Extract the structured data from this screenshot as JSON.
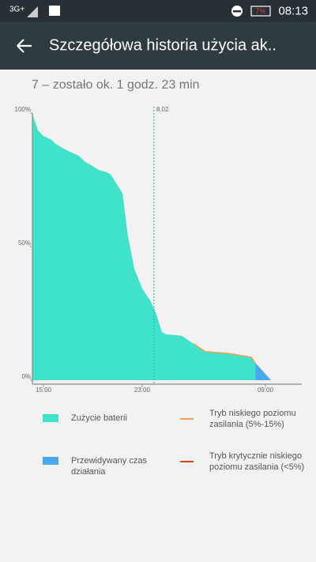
{
  "status_bar": {
    "network": "3G+",
    "battery": "7%",
    "time": "08:13"
  },
  "app_bar": {
    "title": "Szczegółowa historia użycia ak.."
  },
  "subtitle": "7 – zostało ok. 1 godz. 23 min",
  "chart_data": {
    "type": "area",
    "xlim": [
      14.1,
      35.95
    ],
    "xticks": [
      {
        "value": 15,
        "label": "15:00"
      },
      {
        "value": 23,
        "label": "23:00"
      },
      {
        "value": 33,
        "label": "09:00"
      }
    ],
    "ylim": [
      0,
      100
    ],
    "yticks": [
      {
        "value": 0,
        "label": "0%"
      },
      {
        "value": 50,
        "label": "50%"
      },
      {
        "value": 100,
        "label": "100%"
      }
    ],
    "marker": {
      "x": 23.96,
      "label": "8.02",
      "color": "#2aa8b8"
    },
    "series": [
      {
        "name": "Zużycie baterii",
        "color": "#3fe3c9",
        "style": "area",
        "x": [
          14.1,
          14.23,
          14.55,
          15.0,
          15.64,
          15.96,
          16.92,
          17.88,
          18.39,
          19.04,
          19.48,
          20.13,
          20.45,
          21.41,
          21.86,
          22.37,
          23.01,
          23.65,
          24.1,
          24.61,
          24.93,
          26.22,
          27.18,
          28.14,
          30.06,
          31.86,
          32.18
        ],
        "values": [
          100,
          98,
          93.5,
          91.4,
          90,
          88.5,
          86,
          84,
          81.7,
          80,
          78.7,
          77.8,
          77,
          70,
          53.6,
          41.7,
          34.3,
          29.9,
          25.4,
          18,
          17.2,
          16.6,
          13.6,
          10.7,
          10,
          8.6,
          6.5
        ]
      },
      {
        "name": "Przewidywany czas działania",
        "color": "#4aa8f0",
        "style": "area",
        "x": [
          32.18,
          33.46
        ],
        "values": [
          6.5,
          0
        ]
      },
      {
        "name": "Tryb niskiego poziomu zasilania (5%-15%)",
        "color": "#f0a050",
        "style": "line",
        "x": [
          27.18,
          28.14,
          30.06,
          31.86,
          32.18
        ],
        "values": [
          13.6,
          10.7,
          10,
          8.6,
          6.5
        ]
      },
      {
        "name": "Tryb krytycznie niskiego poziomu zasilania (<5%)",
        "color": "#e0401a",
        "style": "line",
        "x": [],
        "values": []
      }
    ]
  }
}
